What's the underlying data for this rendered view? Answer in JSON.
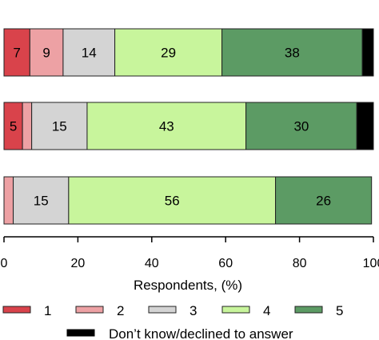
{
  "chart_data": {
    "type": "bar",
    "orientation": "horizontal",
    "stacked": true,
    "xlabel": "Respondents, (%)",
    "xlim": [
      0,
      100
    ],
    "x_ticks": [
      0,
      20,
      40,
      60,
      80,
      100
    ],
    "x_tick_labels": [
      "0",
      "20",
      "40",
      "60",
      "80",
      "100"
    ],
    "grid": false,
    "legend_position": "bottom",
    "legend": [
      {
        "name": "1",
        "color": "#d9434b"
      },
      {
        "name": "2",
        "color": "#eda1a4"
      },
      {
        "name": "3",
        "color": "#d4d4d4"
      },
      {
        "name": "4",
        "color": "#c8f59c"
      },
      {
        "name": "5",
        "color": "#5c9b64"
      },
      {
        "name": "Don’t know/declined to answer",
        "color": "#000000"
      }
    ],
    "bars": [
      {
        "segments": [
          {
            "series": "1",
            "value": 7,
            "label": "7"
          },
          {
            "series": "2",
            "value": 9,
            "label": "9"
          },
          {
            "series": "3",
            "value": 14,
            "label": "14"
          },
          {
            "series": "4",
            "value": 29,
            "label": "29"
          },
          {
            "series": "5",
            "value": 38,
            "label": "38"
          },
          {
            "series": "Don’t know/declined to answer",
            "value": 3,
            "label": ""
          }
        ]
      },
      {
        "segments": [
          {
            "series": "1",
            "value": 5,
            "label": "5"
          },
          {
            "series": "2",
            "value": 2.5,
            "label": ""
          },
          {
            "series": "3",
            "value": 15,
            "label": "15"
          },
          {
            "series": "4",
            "value": 43,
            "label": "43"
          },
          {
            "series": "5",
            "value": 30,
            "label": "30"
          },
          {
            "series": "Don’t know/declined to answer",
            "value": 4.5,
            "label": ""
          }
        ]
      },
      {
        "segments": [
          {
            "series": "2",
            "value": 2.5,
            "label": ""
          },
          {
            "series": "3",
            "value": 15,
            "label": "15"
          },
          {
            "series": "4",
            "value": 56,
            "label": "56"
          },
          {
            "series": "5",
            "value": 26,
            "label": "26"
          }
        ]
      }
    ]
  }
}
